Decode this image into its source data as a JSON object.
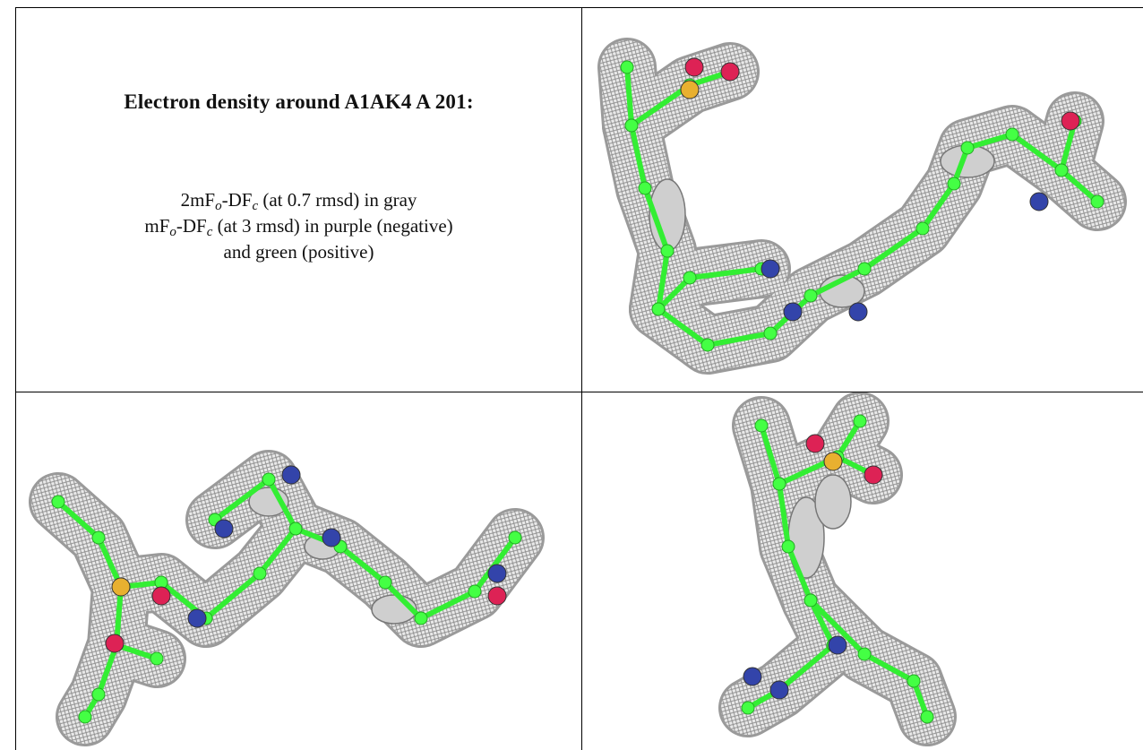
{
  "caption": {
    "title": "Electron density around A1AK4 A 201:",
    "lines": [
      [
        "2mF",
        "o",
        "-DF",
        "c",
        " (at 0.7 rmsd) in gray"
      ],
      [
        "mF",
        "o",
        "-DF",
        "c",
        " (at 3 rmsd) in purple (negative)"
      ],
      [
        "and green (positive)"
      ]
    ]
  }
}
